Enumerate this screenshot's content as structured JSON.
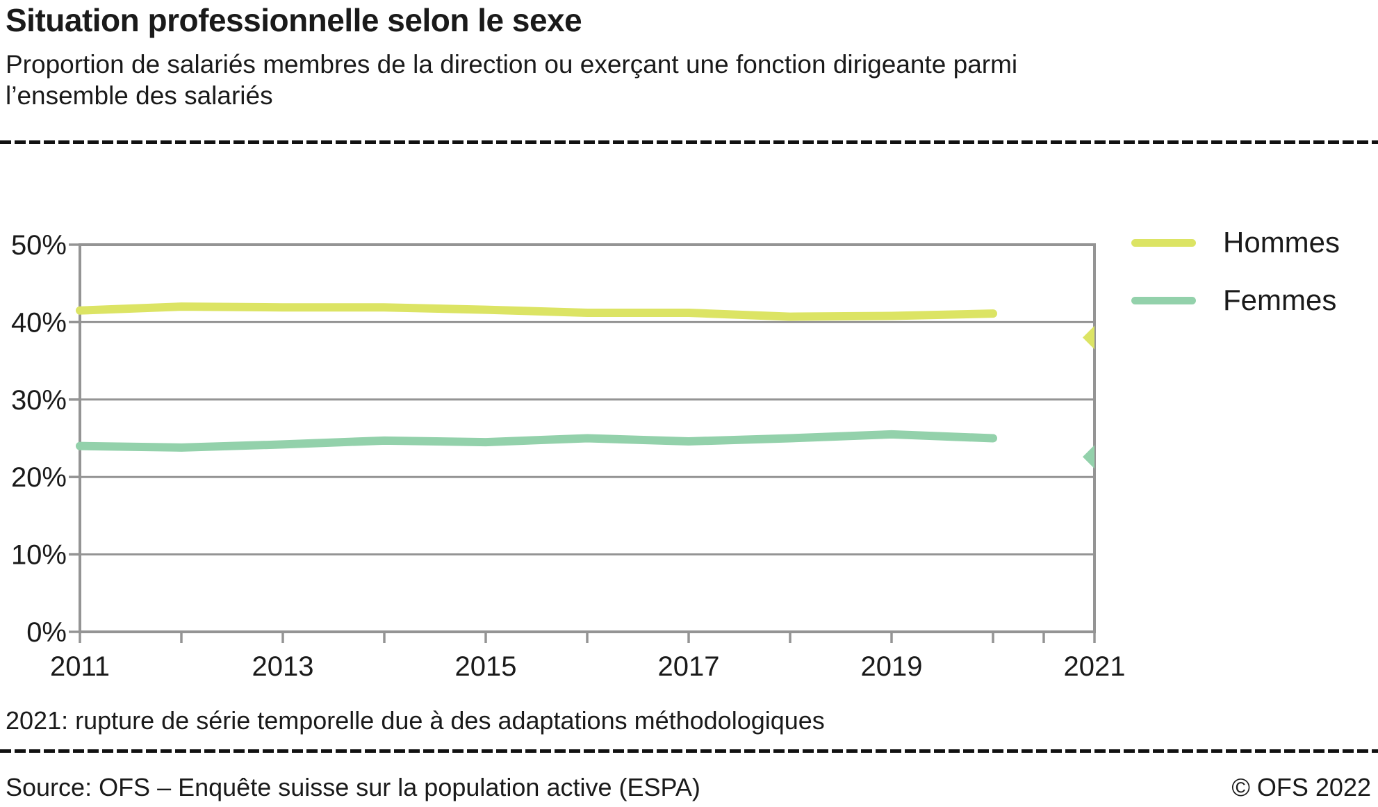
{
  "header": {
    "title": "Situation professionnelle selon le sexe",
    "subtitle_lines": [
      "Proportion de salariés membres de la direction ou exerçant une fonction dirigeante parmi",
      "l’ensemble des salariés"
    ]
  },
  "legend": [
    {
      "label": "Hommes",
      "color": "#dce464"
    },
    {
      "label": "Femmes",
      "color": "#93d1ab"
    }
  ],
  "chart_data": {
    "type": "line",
    "title": "Situation professionnelle selon le sexe",
    "x": [
      2011,
      2012,
      2013,
      2014,
      2015,
      2016,
      2017,
      2018,
      2019,
      2020
    ],
    "series": [
      {
        "name": "Hommes",
        "color": "#dce464",
        "values": [
          41.5,
          42.0,
          41.9,
          41.9,
          41.6,
          41.2,
          41.2,
          40.7,
          40.8,
          41.1
        ]
      },
      {
        "name": "Femmes",
        "color": "#93d1ab",
        "values": [
          24.0,
          23.8,
          24.2,
          24.7,
          24.5,
          25.0,
          24.6,
          25.0,
          25.5,
          25.0
        ]
      }
    ],
    "break_2021": [
      {
        "name": "Hommes",
        "year": 2021,
        "value": 38.0
      },
      {
        "name": "Femmes",
        "year": 2021,
        "value": 22.6
      }
    ],
    "ylim": [
      0,
      50
    ],
    "y_tick_labels": [
      "0%",
      "10%",
      "20%",
      "30%",
      "40%",
      "50%"
    ],
    "x_tick_labels": [
      "2011",
      "2013",
      "2015",
      "2017",
      "2019",
      "2021"
    ],
    "x_minor_tick_years": [
      2011,
      2012,
      2013,
      2014,
      2015,
      2016,
      2017,
      2018,
      2019,
      2020,
      2020.5,
      2021
    ],
    "grid": "horizontal",
    "legend_position": "top-right",
    "axis_color": "#949494"
  },
  "footnote": "2021: rupture de série temporelle due à des adaptations méthodologiques",
  "footer": {
    "source": "Source: OFS – Enquête suisse sur la population active (ESPA)",
    "copyright": "© OFS 2022"
  }
}
